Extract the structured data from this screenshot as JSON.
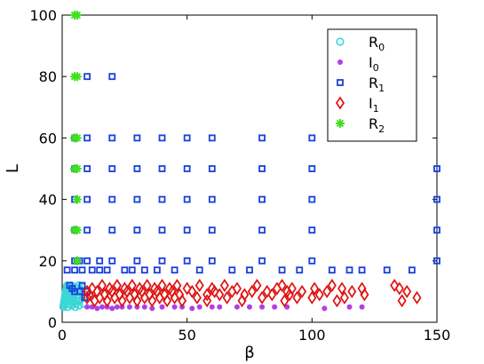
{
  "chart_data": {
    "type": "scatter",
    "title": "",
    "xlabel": "β",
    "ylabel": "L",
    "xlim": [
      0,
      150
    ],
    "ylim": [
      0,
      100
    ],
    "xticks": [
      0,
      50,
      100,
      150
    ],
    "yticks": [
      0,
      20,
      40,
      60,
      80,
      100
    ],
    "grid": false,
    "legend": {
      "placement": "top-right",
      "entries": [
        {
          "base": "R",
          "sub": "0",
          "series": "R0"
        },
        {
          "base": "I",
          "sub": "0",
          "series": "I0"
        },
        {
          "base": "R",
          "sub": "1",
          "series": "R1"
        },
        {
          "base": "I",
          "sub": "1",
          "series": "I1"
        },
        {
          "base": "R",
          "sub": "2",
          "series": "R2"
        }
      ]
    },
    "series": [
      {
        "name": "R0",
        "marker": "circle",
        "color": "#3cd6d6",
        "points": [
          [
            0.5,
            5
          ],
          [
            0.6,
            5.5
          ],
          [
            0.7,
            6
          ],
          [
            0.8,
            6.5
          ],
          [
            0.9,
            7
          ],
          [
            1,
            7.5
          ],
          [
            1.1,
            8
          ],
          [
            1.2,
            8.5
          ],
          [
            1.3,
            9
          ],
          [
            1.4,
            9.5
          ],
          [
            1.5,
            10
          ],
          [
            1.6,
            10.5
          ],
          [
            1.7,
            11
          ],
          [
            1.8,
            11.5
          ],
          [
            2,
            12
          ],
          [
            2.2,
            5
          ],
          [
            2.4,
            6
          ],
          [
            2.6,
            7
          ],
          [
            2.8,
            8
          ],
          [
            3,
            9
          ],
          [
            3.2,
            10
          ],
          [
            3.4,
            11
          ],
          [
            3.6,
            12
          ],
          [
            3.8,
            5.5
          ],
          [
            4,
            6.5
          ],
          [
            4.2,
            7.5
          ],
          [
            4.4,
            8.5
          ],
          [
            4.6,
            9.5
          ],
          [
            4.8,
            10.5
          ],
          [
            5,
            11.5
          ],
          [
            5.2,
            5
          ],
          [
            5.4,
            6
          ],
          [
            5.6,
            7
          ],
          [
            5.8,
            8
          ],
          [
            6,
            9
          ],
          [
            6.2,
            10
          ],
          [
            6.4,
            11
          ],
          [
            6.6,
            12
          ],
          [
            6.8,
            5.5
          ],
          [
            7,
            7
          ],
          [
            7.3,
            8.5
          ],
          [
            7.6,
            10
          ],
          [
            8,
            11.5
          ],
          [
            8.5,
            6
          ],
          [
            9,
            9
          ]
        ]
      },
      {
        "name": "I0",
        "marker": "dot",
        "color": "#b040e0",
        "points": [
          [
            10,
            5
          ],
          [
            12,
            5
          ],
          [
            14,
            4.5
          ],
          [
            16,
            5
          ],
          [
            18,
            5
          ],
          [
            20,
            4.5
          ],
          [
            22,
            5
          ],
          [
            24,
            5
          ],
          [
            27,
            5
          ],
          [
            30,
            5
          ],
          [
            33,
            5
          ],
          [
            36,
            4.5
          ],
          [
            40,
            5
          ],
          [
            45,
            5
          ],
          [
            48,
            5
          ],
          [
            52,
            4.5
          ],
          [
            55,
            5
          ],
          [
            60,
            5
          ],
          [
            63,
            5
          ],
          [
            70,
            5
          ],
          [
            75,
            5
          ],
          [
            80,
            5
          ],
          [
            85,
            5
          ],
          [
            90,
            5
          ],
          [
            105,
            4.5
          ],
          [
            115,
            5
          ],
          [
            120,
            5
          ]
        ]
      },
      {
        "name": "R1",
        "marker": "square",
        "color": "#1a3fe0",
        "points": [
          [
            2,
            17
          ],
          [
            3,
            12
          ],
          [
            4,
            11
          ],
          [
            5,
            10
          ],
          [
            5,
            17
          ],
          [
            5,
            20
          ],
          [
            5,
            30
          ],
          [
            5,
            40
          ],
          [
            5,
            50
          ],
          [
            5,
            60
          ],
          [
            6,
            20
          ],
          [
            7,
            20
          ],
          [
            7,
            10
          ],
          [
            8,
            17
          ],
          [
            8,
            12
          ],
          [
            9,
            8
          ],
          [
            10,
            10
          ],
          [
            10,
            20
          ],
          [
            10,
            30
          ],
          [
            10,
            40
          ],
          [
            10,
            50
          ],
          [
            10,
            60
          ],
          [
            10,
            80
          ],
          [
            12,
            17
          ],
          [
            15,
            20
          ],
          [
            15,
            17
          ],
          [
            18,
            17
          ],
          [
            20,
            20
          ],
          [
            20,
            30
          ],
          [
            20,
            40
          ],
          [
            20,
            50
          ],
          [
            20,
            60
          ],
          [
            20,
            80
          ],
          [
            25,
            17
          ],
          [
            28,
            17
          ],
          [
            30,
            20
          ],
          [
            30,
            30
          ],
          [
            30,
            40
          ],
          [
            30,
            50
          ],
          [
            30,
            60
          ],
          [
            33,
            17
          ],
          [
            38,
            17
          ],
          [
            40,
            20
          ],
          [
            40,
            30
          ],
          [
            40,
            40
          ],
          [
            40,
            50
          ],
          [
            40,
            60
          ],
          [
            45,
            17
          ],
          [
            50,
            20
          ],
          [
            50,
            30
          ],
          [
            50,
            40
          ],
          [
            50,
            50
          ],
          [
            50,
            60
          ],
          [
            55,
            17
          ],
          [
            60,
            20
          ],
          [
            60,
            30
          ],
          [
            60,
            40
          ],
          [
            60,
            50
          ],
          [
            60,
            60
          ],
          [
            68,
            17
          ],
          [
            75,
            17
          ],
          [
            80,
            20
          ],
          [
            80,
            30
          ],
          [
            80,
            40
          ],
          [
            80,
            50
          ],
          [
            80,
            60
          ],
          [
            88,
            17
          ],
          [
            95,
            17
          ],
          [
            100,
            20
          ],
          [
            100,
            30
          ],
          [
            100,
            40
          ],
          [
            100,
            50
          ],
          [
            100,
            60
          ],
          [
            108,
            17
          ],
          [
            115,
            17
          ],
          [
            120,
            17
          ],
          [
            130,
            17
          ],
          [
            140,
            17
          ],
          [
            150,
            20
          ],
          [
            150,
            30
          ],
          [
            150,
            40
          ],
          [
            150,
            50
          ]
        ]
      },
      {
        "name": "I1",
        "marker": "diamond",
        "color": "#e01010",
        "points": [
          [
            10,
            8
          ],
          [
            10,
            10
          ],
          [
            11,
            9
          ],
          [
            12,
            11
          ],
          [
            13,
            7
          ],
          [
            14,
            10
          ],
          [
            15,
            8
          ],
          [
            16,
            12
          ],
          [
            17,
            9
          ],
          [
            18,
            7
          ],
          [
            19,
            11
          ],
          [
            20,
            10
          ],
          [
            21,
            8
          ],
          [
            22,
            12
          ],
          [
            23,
            9
          ],
          [
            24,
            7
          ],
          [
            25,
            11
          ],
          [
            26,
            10
          ],
          [
            27,
            8
          ],
          [
            28,
            12
          ],
          [
            29,
            9
          ],
          [
            30,
            7
          ],
          [
            31,
            11
          ],
          [
            32,
            10
          ],
          [
            33,
            8
          ],
          [
            34,
            12
          ],
          [
            35,
            9
          ],
          [
            36,
            7
          ],
          [
            37,
            11
          ],
          [
            38,
            10
          ],
          [
            39,
            8
          ],
          [
            40,
            12
          ],
          [
            41,
            9
          ],
          [
            42,
            7
          ],
          [
            43,
            11
          ],
          [
            44,
            10
          ],
          [
            45,
            8
          ],
          [
            46,
            12
          ],
          [
            47,
            9
          ],
          [
            48,
            7
          ],
          [
            50,
            11
          ],
          [
            52,
            10
          ],
          [
            54,
            8
          ],
          [
            55,
            12
          ],
          [
            58,
            9
          ],
          [
            58,
            7
          ],
          [
            60,
            11
          ],
          [
            61,
            10
          ],
          [
            63,
            9
          ],
          [
            65,
            12
          ],
          [
            66,
            8
          ],
          [
            68,
            10
          ],
          [
            70,
            11
          ],
          [
            72,
            7
          ],
          [
            73,
            9
          ],
          [
            76,
            10
          ],
          [
            78,
            12
          ],
          [
            80,
            8
          ],
          [
            82,
            10
          ],
          [
            84,
            9
          ],
          [
            86,
            11
          ],
          [
            88,
            12
          ],
          [
            89,
            7
          ],
          [
            90,
            10
          ],
          [
            91,
            9
          ],
          [
            92,
            11
          ],
          [
            94,
            8
          ],
          [
            96,
            10
          ],
          [
            100,
            8
          ],
          [
            101,
            11
          ],
          [
            103,
            9
          ],
          [
            106,
            10
          ],
          [
            108,
            12
          ],
          [
            110,
            7
          ],
          [
            112,
            11
          ],
          [
            113,
            8
          ],
          [
            116,
            10
          ],
          [
            120,
            11
          ],
          [
            121,
            9
          ],
          [
            133,
            12
          ],
          [
            135,
            11
          ],
          [
            136,
            7
          ],
          [
            138,
            10
          ],
          [
            142,
            8
          ]
        ]
      },
      {
        "name": "R2",
        "marker": "star",
        "color": "#40e020",
        "points": [
          [
            6,
            20
          ],
          [
            6,
            30
          ],
          [
            6,
            40
          ],
          [
            6,
            50
          ],
          [
            6,
            60
          ],
          [
            6,
            80
          ],
          [
            6,
            100
          ],
          [
            5,
            30
          ],
          [
            5,
            50
          ],
          [
            5,
            60
          ],
          [
            5,
            80
          ],
          [
            5,
            100
          ]
        ]
      }
    ]
  }
}
